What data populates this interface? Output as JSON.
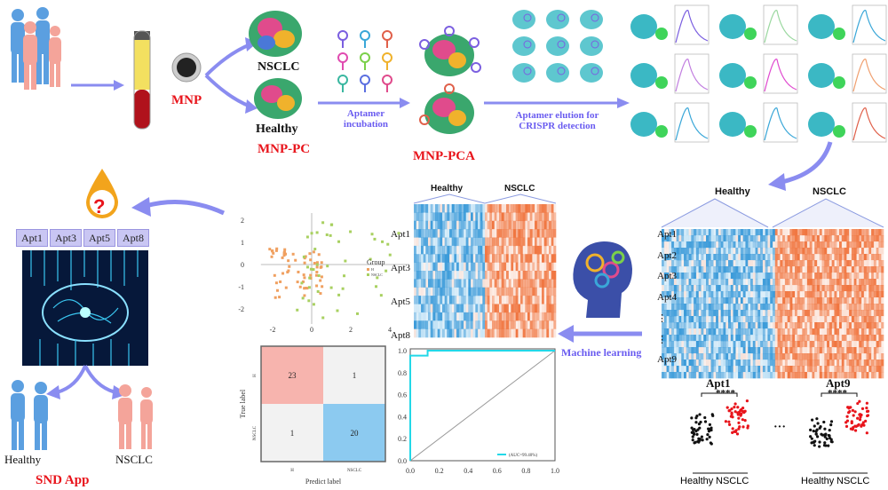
{
  "labels": {
    "mnp": "MNP",
    "nsclc": "NSCLC",
    "healthy": "Healthy",
    "mnp_pc": "MNP-PC",
    "aptamer_incubation": "Aptamer incubation",
    "mnp_pca": "MNP-PCA",
    "aptamer_elution": "Aptamer elution for CRISPR detection",
    "machine_learning": "Machine learning",
    "snd_app": "SND App",
    "out_healthy": "Healthy",
    "out_nsclc": "NSCLC",
    "question": "?"
  },
  "app_aptamers": [
    "Apt1",
    "Apt3",
    "Apt5",
    "Apt8"
  ],
  "heatmap_small": {
    "groups": [
      "Healthy",
      "NSCLC"
    ],
    "rows": [
      "Apt1",
      "Apt3",
      "Apt5",
      "Apt8"
    ]
  },
  "heatmap_large": {
    "groups": [
      "Healthy",
      "NSCLC"
    ],
    "rows": [
      "Apt1",
      "Apt2",
      "Apt3",
      "Apt4",
      "⋮",
      "⋮",
      "Apt9"
    ]
  },
  "dotplots": [
    {
      "title": "Apt1",
      "significance": "****",
      "x": [
        "Healthy",
        "NSCLC"
      ]
    },
    {
      "title": "Apt9",
      "significance": "****",
      "x": [
        "Healthy",
        "NSCLC"
      ]
    }
  ],
  "ellipsis": "···",
  "scatter": {
    "legend_title": "Group",
    "legend": [
      "H",
      "NSCLC"
    ],
    "xticks": [
      "-2",
      "0",
      "2",
      "4"
    ],
    "yticks": [
      "2",
      "1",
      "0",
      "-1",
      "-2"
    ]
  },
  "confusion_matrix": {
    "ylabel": "True label",
    "xlabel": "Predict label",
    "classes": [
      "H",
      "NSCLC"
    ],
    "values": [
      [
        23,
        1
      ],
      [
        1,
        20
      ]
    ]
  },
  "roc": {
    "legend": "(AUC=99.40%)",
    "xticks": [
      "0.0",
      "0.2",
      "0.4",
      "0.6",
      "0.8",
      "1.0"
    ],
    "yticks": [
      "1.0",
      "0.8",
      "0.6",
      "0.4",
      "0.2",
      "0.0"
    ]
  },
  "colors": {
    "red": "#e8141b",
    "purple": "#6a5cf0",
    "heat_blue": "#3a9ad9",
    "heat_orange": "#f0743e",
    "cm_red": "#f7b4ae",
    "cm_blue": "#8ccaf0",
    "roc": "#22d8e8"
  }
}
